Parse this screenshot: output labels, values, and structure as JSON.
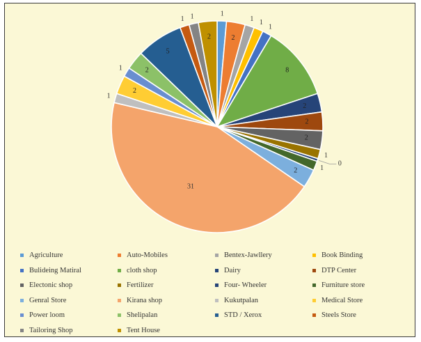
{
  "chart_data": {
    "type": "pie",
    "start_angle_deg": 0,
    "slices": [
      {
        "name": "Agriculture",
        "value": 1,
        "color": "#5b9bd5",
        "label": "1"
      },
      {
        "name": "Auto-Mobiles",
        "value": 2,
        "color": "#ed7d31",
        "label": "2"
      },
      {
        "name": "Bentex-Jawllery",
        "value": 1,
        "color": "#a5a5a5",
        "label": "1"
      },
      {
        "name": "Book Binding",
        "value": 1,
        "color": "#ffc000",
        "label": "1"
      },
      {
        "name": "Bulideing Matiral",
        "value": 1,
        "color": "#4472c4",
        "label": "1"
      },
      {
        "name": "cloth shop",
        "value": 8,
        "color": "#70ad47",
        "label": "8"
      },
      {
        "name": "Dairy",
        "value": 2,
        "color": "#264478",
        "label": "2"
      },
      {
        "name": "DTP Center",
        "value": 2,
        "color": "#9e480e",
        "label": "2"
      },
      {
        "name": "Electonic shop",
        "value": 2,
        "color": "#636363",
        "label": "2"
      },
      {
        "name": "Fertilizer",
        "value": 1,
        "color": "#997300",
        "label": "1"
      },
      {
        "name": "Four- Wheeler",
        "value": 0.3,
        "color": "#264478",
        "label": "0"
      },
      {
        "name": "Furniture store",
        "value": 1,
        "color": "#43682b",
        "label": "1"
      },
      {
        "name": "Genral Store",
        "value": 2,
        "color": "#7cafdd",
        "label": "2"
      },
      {
        "name": "Kirana shop",
        "value": 31,
        "color": "#f4a46b",
        "label": "31"
      },
      {
        "name": "Kukutpalan",
        "value": 1,
        "color": "#bfbfbf",
        "label": "1"
      },
      {
        "name": "Medical Store",
        "value": 2,
        "color": "#ffcd33",
        "label": "2"
      },
      {
        "name": "Power loom",
        "value": 1,
        "color": "#698ed0",
        "label": "1"
      },
      {
        "name": "Shelipalan",
        "value": 2,
        "color": "#8cc168",
        "label": "2"
      },
      {
        "name": "STD / Xerox",
        "value": 5,
        "color": "#255e91",
        "label": "5"
      },
      {
        "name": "Steels Store",
        "value": 1,
        "color": "#c55a11",
        "label": "1"
      },
      {
        "name": "Tailoring Shop",
        "value": 1,
        "color": "#848484",
        "label": "1"
      },
      {
        "name": "Tent House",
        "value": 2,
        "color": "#bf9000",
        "label": "2"
      }
    ],
    "legend_position": "bottom",
    "legend_columns": 4
  }
}
